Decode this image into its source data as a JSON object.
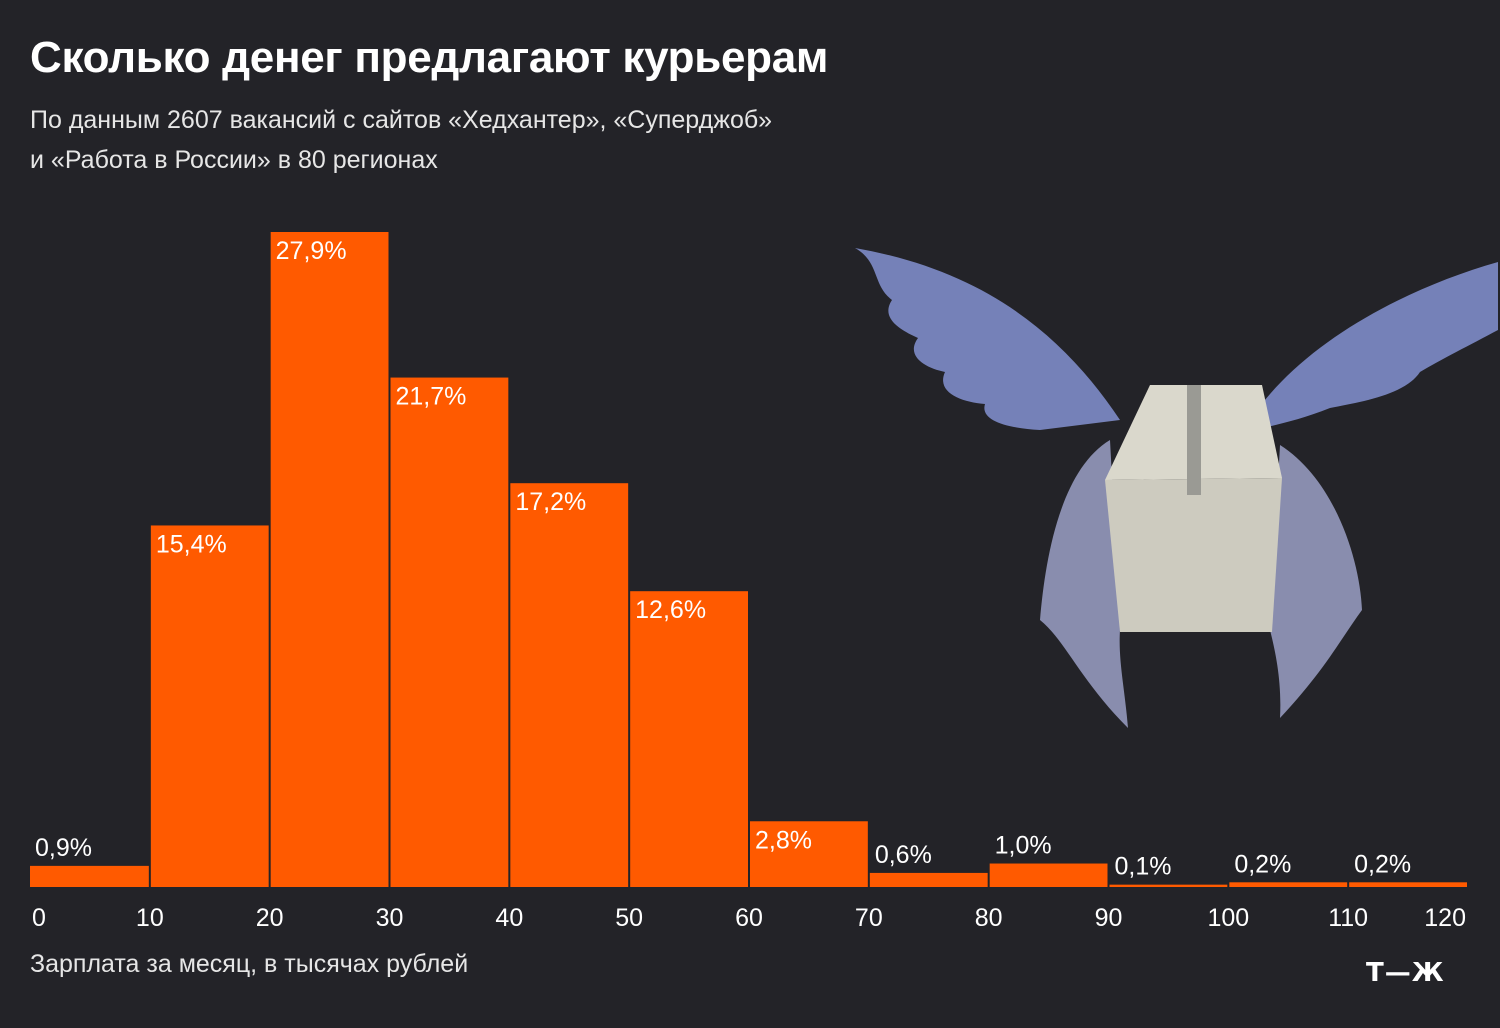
{
  "header": {
    "title": "Сколько денег предлагают курьерам",
    "subtitle_line1": "По данным 2607 вакансий с сайтов «Хедхантер», «Суперджоб»",
    "subtitle_line2": "и «Работа в России» в 80 регионах"
  },
  "footer": {
    "logo_text": "Т—Ж"
  },
  "illustration": {
    "icon": "winged-box-icon"
  },
  "colors": {
    "background": "#232328",
    "bar": "#ff5a00",
    "text": "#ffffff"
  },
  "chart_data": {
    "type": "bar",
    "xlabel": "Зарплата за месяц, в тысячах рублей",
    "ylabel": "",
    "bins": [
      [
        0,
        10
      ],
      [
        10,
        20
      ],
      [
        20,
        30
      ],
      [
        30,
        40
      ],
      [
        40,
        50
      ],
      [
        50,
        60
      ],
      [
        60,
        70
      ],
      [
        70,
        80
      ],
      [
        80,
        90
      ],
      [
        90,
        100
      ],
      [
        100,
        110
      ],
      [
        110,
        120
      ]
    ],
    "values": [
      0.9,
      15.4,
      27.9,
      21.7,
      17.2,
      12.6,
      2.8,
      0.6,
      1.0,
      0.1,
      0.2,
      0.2
    ],
    "value_labels": [
      "0,9%",
      "15,4%",
      "27,9%",
      "21,7%",
      "17,2%",
      "12,6%",
      "2,8%",
      "0,6%",
      "1,0%",
      "0,1%",
      "0,2%",
      "0,2%"
    ],
    "x_ticks": [
      "0",
      "10",
      "20",
      "30",
      "40",
      "50",
      "60",
      "70",
      "80",
      "90",
      "100",
      "110",
      "120"
    ],
    "xlim": [
      0,
      120
    ],
    "ylim": [
      0,
      27.9
    ],
    "grid": false,
    "legend": "none"
  }
}
